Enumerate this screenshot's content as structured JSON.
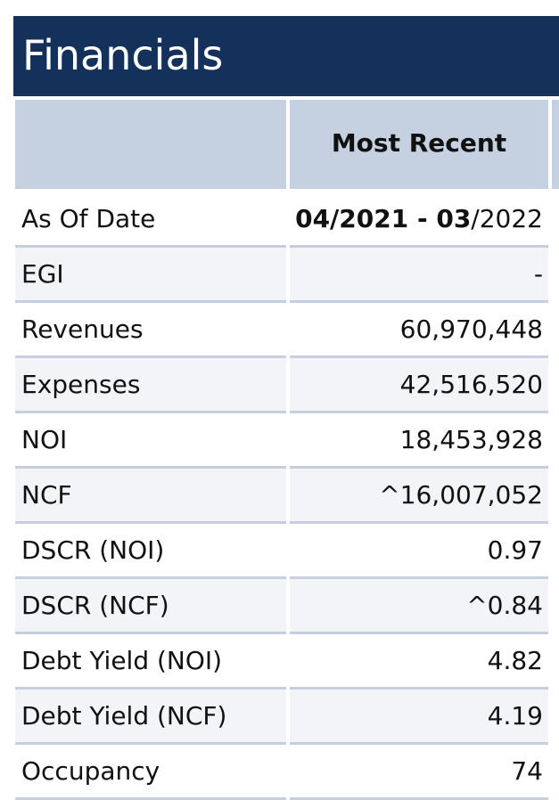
{
  "header": {
    "title": "Financials"
  },
  "table": {
    "column_header": "Most Recent",
    "rows": [
      [
        "As Of Date",
        {
          "link": "04/2021 - 03",
          "text": "/2022"
        }
      ],
      [
        "EGI",
        "-"
      ],
      [
        "Revenues",
        "60,970,448"
      ],
      [
        "Expenses",
        "42,516,520"
      ],
      [
        "NOI",
        "18,453,928"
      ],
      [
        "NCF",
        "^16,007,052"
      ],
      [
        "DSCR (NOI)",
        "0.97"
      ],
      [
        "DSCR (NCF)",
        "^0.84"
      ],
      [
        "Debt Yield (NOI)",
        "4.82"
      ],
      [
        "Debt Yield (NCF)",
        "4.19"
      ],
      [
        "Occupancy",
        "74"
      ]
    ]
  }
}
